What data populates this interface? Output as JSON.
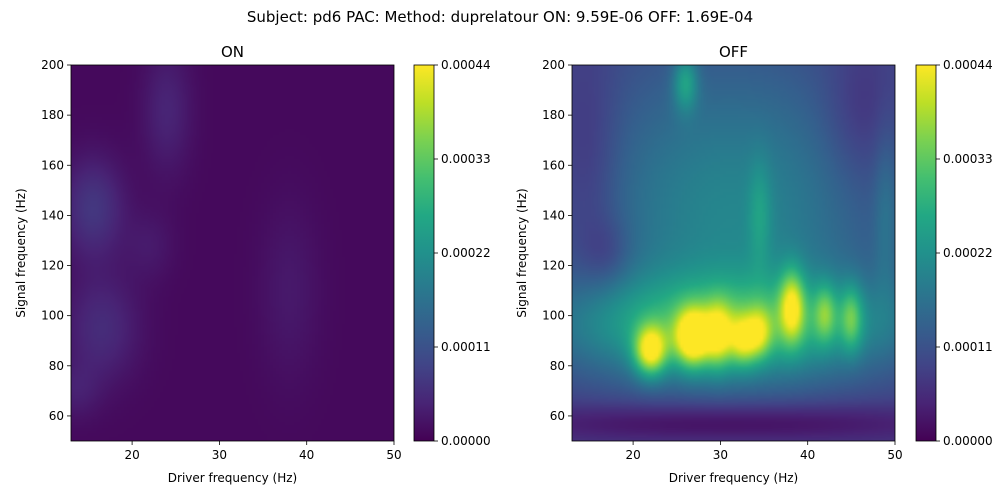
{
  "figure": {
    "suptitle": "Subject: pd6  PAC: Method: duprelatour ON: 9.59E-06 OFF: 1.69E-04"
  },
  "chart_data": [
    {
      "type": "heatmap",
      "title": "ON",
      "xlabel": "Driver frequency (Hz)",
      "ylabel": "Signal frequency (Hz)",
      "xlim": [
        13,
        50
      ],
      "ylim": [
        50,
        200
      ],
      "x_ticks": [
        20,
        30,
        40,
        50
      ],
      "y_ticks": [
        60,
        80,
        100,
        120,
        140,
        160,
        180,
        200
      ],
      "colorbar": {
        "min": 0,
        "max": 0.00044,
        "ticks": [
          "0.00000",
          "0.00011",
          "0.00022",
          "0.00033",
          "0.00044"
        ]
      },
      "colormap": "viridis",
      "background_value": 1e-05,
      "features": [
        {
          "x": 15.5,
          "y": 143,
          "sx": 2.5,
          "sy": 14,
          "value": 6e-05
        },
        {
          "x": 16.5,
          "y": 95,
          "sx": 3,
          "sy": 15,
          "value": 4.5e-05
        },
        {
          "x": 24,
          "y": 182,
          "sx": 2,
          "sy": 18,
          "value": 3.5e-05
        },
        {
          "x": 22,
          "y": 128,
          "sx": 2,
          "sy": 10,
          "value": 2e-05
        },
        {
          "x": 38,
          "y": 110,
          "sx": 2.5,
          "sy": 25,
          "value": 2e-05
        },
        {
          "x": 13.5,
          "y": 70,
          "sx": 2,
          "sy": 8,
          "value": 2.5e-05
        }
      ]
    },
    {
      "type": "heatmap",
      "title": "OFF",
      "xlabel": "Driver frequency (Hz)",
      "ylabel": "Signal frequency (Hz)",
      "xlim": [
        13,
        50
      ],
      "ylim": [
        50,
        200
      ],
      "x_ticks": [
        20,
        30,
        40,
        50
      ],
      "y_ticks": [
        60,
        80,
        100,
        120,
        140,
        160,
        180,
        200
      ],
      "colorbar": {
        "min": 0,
        "max": 0.00044,
        "ticks": [
          "0.00000",
          "0.00011",
          "0.00022",
          "0.00033",
          "0.00044"
        ]
      },
      "colormap": "viridis",
      "background_value": 8e-05,
      "features": [
        {
          "x": 31,
          "y": 96,
          "sx": 14,
          "sy": 14,
          "value": 0.00017
        },
        {
          "x": 31,
          "y": 140,
          "sx": 12,
          "sy": 45,
          "value": 0.00012
        },
        {
          "x": 22,
          "y": 86,
          "sx": 1.3,
          "sy": 7,
          "value": 0.00026
        },
        {
          "x": 26.8,
          "y": 91,
          "sx": 1.4,
          "sy": 8,
          "value": 0.00027
        },
        {
          "x": 29.8,
          "y": 92,
          "sx": 1.1,
          "sy": 9,
          "value": 0.00017
        },
        {
          "x": 32.6,
          "y": 90,
          "sx": 1.1,
          "sy": 7,
          "value": 0.00016
        },
        {
          "x": 34.5,
          "y": 93,
          "sx": 1.0,
          "sy": 7,
          "value": 0.00013
        },
        {
          "x": 38.2,
          "y": 104,
          "sx": 1.0,
          "sy": 10,
          "value": 0.0002
        },
        {
          "x": 42,
          "y": 101,
          "sx": 0.9,
          "sy": 8,
          "value": 0.00012
        },
        {
          "x": 45,
          "y": 99,
          "sx": 0.9,
          "sy": 9,
          "value": 0.00013
        },
        {
          "x": 26,
          "y": 193,
          "sx": 1,
          "sy": 8,
          "value": 0.00012
        },
        {
          "x": 34.5,
          "y": 140,
          "sx": 0.9,
          "sy": 15,
          "value": 6e-05
        },
        {
          "x": 15,
          "y": 160,
          "sx": 2.5,
          "sy": 30,
          "value": -4e-05
        },
        {
          "x": 17,
          "y": 125,
          "sx": 2,
          "sy": 10,
          "value": -4e-05
        },
        {
          "x": 46,
          "y": 180,
          "sx": 3,
          "sy": 20,
          "value": -4e-05
        },
        {
          "x": 31,
          "y": 57,
          "sx": 18,
          "sy": 6,
          "value": -8e-05
        },
        {
          "x": 49,
          "y": 140,
          "sx": 1,
          "sy": 25,
          "value": 5e-05
        }
      ]
    }
  ]
}
